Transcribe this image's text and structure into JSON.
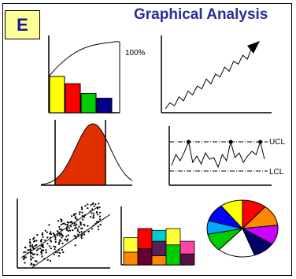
{
  "badge": {
    "letter": "E"
  },
  "title": "Graphical Analysis",
  "pareto": {
    "bars": [
      {
        "value": 30,
        "color": "#ffff00"
      },
      {
        "value": 24,
        "color": "#ff0000"
      },
      {
        "value": 16,
        "color": "#00cc00"
      },
      {
        "value": 12,
        "color": "#00008b"
      }
    ],
    "percent_label": "100%"
  },
  "trend": {
    "values": [
      10,
      16,
      13,
      22,
      18,
      28,
      24,
      33,
      30,
      40,
      35,
      45,
      42,
      52,
      48,
      58,
      55,
      64,
      60,
      72
    ]
  },
  "histogram": {
    "fill_color": "#e03000"
  },
  "control_chart": {
    "ucl_label": "UCL",
    "lcl_label": "LCL",
    "values": [
      0.2,
      0.55,
      0.35,
      0.62,
      0.95,
      0.3,
      0.5,
      0.25,
      0.6,
      0.4,
      0.45,
      0.15,
      0.55,
      0.35,
      0.95,
      0.45,
      0.6,
      0.3,
      0.5,
      0.65,
      0.55,
      0.95,
      0.4
    ]
  },
  "column_chart": {
    "columns": [
      {
        "segments": [
          {
            "color": "#ff8800",
            "value": 0.35
          },
          {
            "color": "#ffff33",
            "value": 0.4
          }
        ]
      },
      {
        "segments": [
          {
            "color": "#660033",
            "value": 0.45
          },
          {
            "color": "#ff0000",
            "value": 0.55
          }
        ]
      },
      {
        "segments": [
          {
            "color": "#ff8800",
            "value": 0.25
          },
          {
            "color": "#552255",
            "value": 0.4
          },
          {
            "color": "#00cccc",
            "value": 0.3
          }
        ]
      },
      {
        "segments": [
          {
            "color": "#00cc00",
            "value": 0.55
          },
          {
            "color": "#ffff33",
            "value": 0.45
          }
        ]
      },
      {
        "segments": [
          {
            "color": "#551144",
            "value": 0.3
          },
          {
            "color": "#ff44aa",
            "value": 0.35
          }
        ]
      }
    ]
  },
  "pie": {
    "slices": [
      {
        "value": 13,
        "color": "#ff0000"
      },
      {
        "value": 14,
        "color": "#ff8800"
      },
      {
        "value": 13,
        "color": "#cc00ff"
      },
      {
        "value": 12,
        "color": "#000066"
      },
      {
        "value": 20,
        "color": "#ffffff"
      },
      {
        "value": 12,
        "color": "#00cc00"
      },
      {
        "value": 9,
        "color": "#00aaff"
      },
      {
        "value": 12,
        "color": "#0000ff"
      },
      {
        "value": 12,
        "color": "#ffff00"
      }
    ]
  }
}
